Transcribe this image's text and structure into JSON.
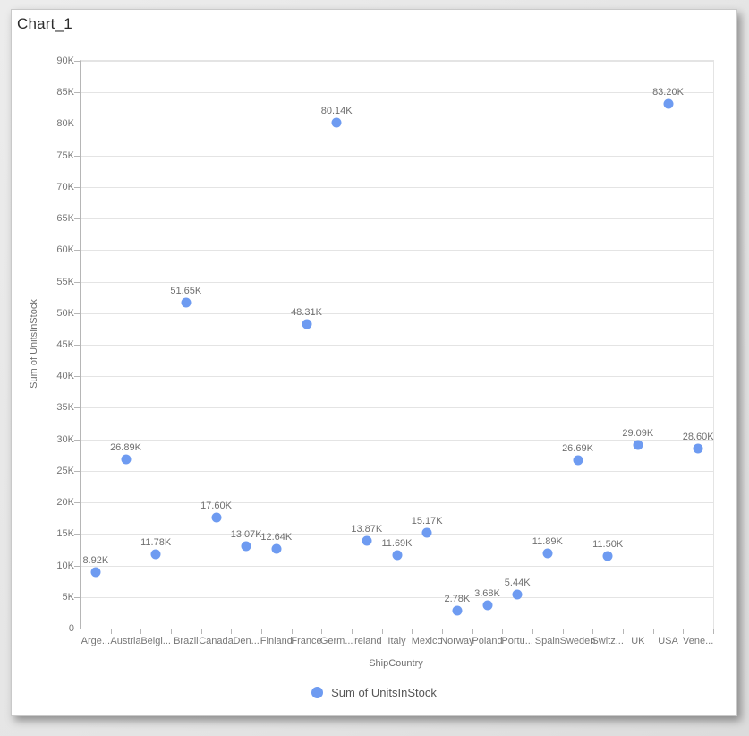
{
  "window": {
    "title": "Chart_1"
  },
  "chart_data": {
    "type": "scatter",
    "title": "Chart_1",
    "xlabel": "ShipCountry",
    "ylabel": "Sum of UnitsInStock",
    "grid": "horizontal",
    "legend_position": "bottom",
    "legend_label": "Sum of UnitsInStock",
    "marker_color": "#6E9BF1",
    "ylim": [
      0,
      90000
    ],
    "y_tick_step": 5000,
    "y_tick_labels": [
      "0",
      "5K",
      "10K",
      "15K",
      "20K",
      "25K",
      "30K",
      "35K",
      "40K",
      "45K",
      "50K",
      "55K",
      "60K",
      "65K",
      "70K",
      "75K",
      "80K",
      "85K",
      "90K"
    ],
    "categories": [
      "Arge...",
      "Austria",
      "Belgi...",
      "Brazil",
      "Canada",
      "Den...",
      "Finland",
      "France",
      "Germ...",
      "Ireland",
      "Italy",
      "Mexico",
      "Norway",
      "Poland",
      "Portu...",
      "Spain",
      "Sweden",
      "Switz...",
      "UK",
      "USA",
      "Vene..."
    ],
    "series": [
      {
        "name": "Sum of UnitsInStock",
        "values": [
          8920,
          26890,
          11780,
          51650,
          17600,
          13070,
          12640,
          48310,
          80140,
          13870,
          11690,
          15170,
          2780,
          3680,
          5440,
          11890,
          26690,
          11500,
          29090,
          83200,
          28600
        ],
        "point_labels": [
          "8.92K",
          "26.89K",
          "11.78K",
          "51.65K",
          "17.60K",
          "13.07K",
          "12.64K",
          "48.31K",
          "80.14K",
          "13.87K",
          "11.69K",
          "15.17K",
          "2.78K",
          "3.68K",
          "5.44K",
          "11.89K",
          "26.69K",
          "11.50K",
          "29.09K",
          "83.20K",
          "28.60K"
        ]
      }
    ]
  }
}
